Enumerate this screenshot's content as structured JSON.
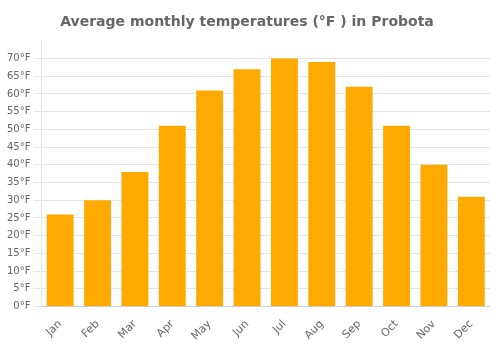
{
  "chart_data": {
    "type": "bar",
    "title": "Average monthly temperatures (°F ) in Probota",
    "categories": [
      "Jan",
      "Feb",
      "Mar",
      "Apr",
      "May",
      "Jun",
      "Jul",
      "Aug",
      "Sep",
      "Oct",
      "Nov",
      "Dec"
    ],
    "values": [
      26,
      30,
      38,
      51,
      61,
      67,
      70,
      69,
      62,
      51,
      40,
      31
    ],
    "color": "#FFAA00",
    "ylim": [
      0,
      75
    ],
    "yticks": [
      {
        "value": 0,
        "label": "0°F"
      },
      {
        "value": 5,
        "label": "5°F"
      },
      {
        "value": 10,
        "label": "10°F"
      },
      {
        "value": 15,
        "label": "15°F"
      },
      {
        "value": 20,
        "label": "20°F"
      },
      {
        "value": 25,
        "label": "25°F"
      },
      {
        "value": 30,
        "label": "30°F"
      },
      {
        "value": 35,
        "label": "35°F"
      },
      {
        "value": 40,
        "label": "40°F"
      },
      {
        "value": 45,
        "label": "45°F"
      },
      {
        "value": 50,
        "label": "50°F"
      },
      {
        "value": 55,
        "label": "55°F"
      },
      {
        "value": 60,
        "label": "60°F"
      },
      {
        "value": 65,
        "label": "65°F"
      },
      {
        "value": 70,
        "label": "70°F"
      }
    ],
    "grid": true
  }
}
